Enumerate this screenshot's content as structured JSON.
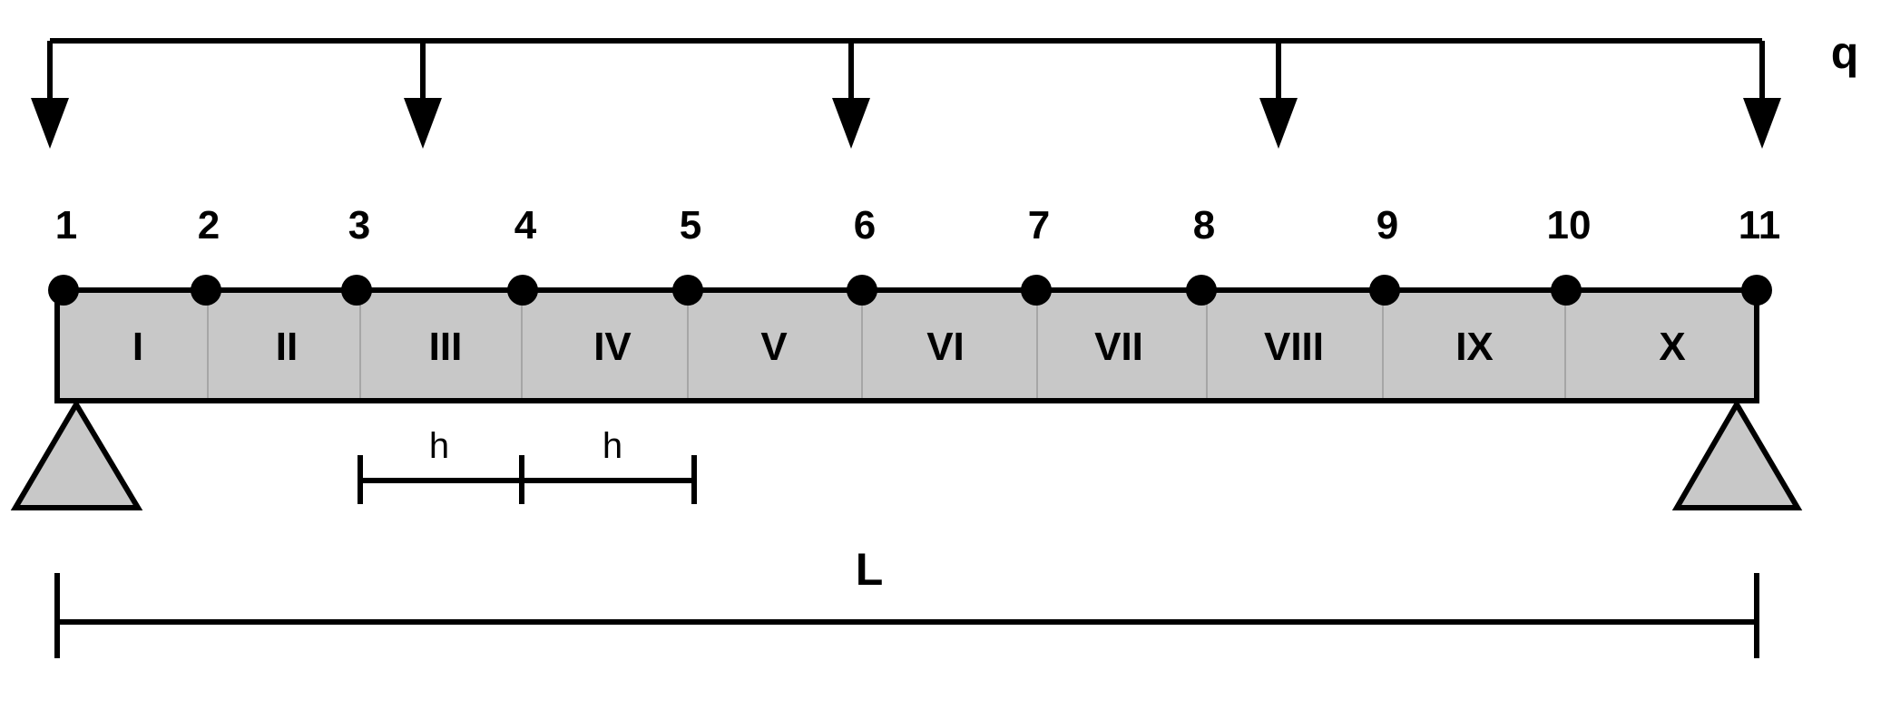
{
  "load": {
    "label": "q"
  },
  "nodes": [
    "1",
    "2",
    "3",
    "4",
    "5",
    "6",
    "7",
    "8",
    "9",
    "10",
    "11"
  ],
  "segments": [
    "I",
    "II",
    "III",
    "IV",
    "V",
    "VI",
    "VII",
    "VIII",
    "IX",
    "X"
  ],
  "spacing": {
    "label": "h"
  },
  "length": {
    "label": "L"
  },
  "colors": {
    "beam_fill": "#c8c8c8",
    "support_fill": "#c8c8c8",
    "line": "#000000",
    "divider": "#9a9a9a"
  }
}
